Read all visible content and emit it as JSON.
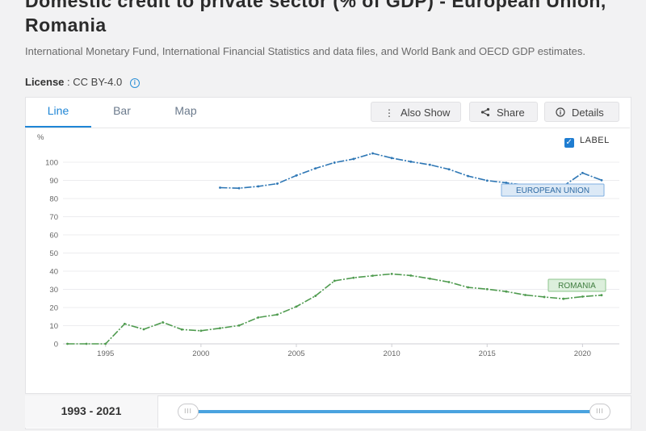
{
  "header": {
    "title": "Domestic credit to private sector (% of GDP) - European Union, Romania",
    "source": "International Monetary Fund, International Financial Statistics and data files, and World Bank and OECD GDP estimates.",
    "license_label": "License",
    "license_value": ": CC BY-4.0"
  },
  "tabs": [
    {
      "label": "Line"
    },
    {
      "label": "Bar"
    },
    {
      "label": "Map"
    }
  ],
  "actions": {
    "also_show": "Also Show",
    "share": "Share",
    "details": "Details"
  },
  "label_toggle": {
    "text": "LABEL",
    "checked": true
  },
  "range": {
    "text": "1993 - 2021",
    "start": 1993,
    "end": 2021
  },
  "colors": {
    "eu": "#2e77b5",
    "romania": "#4f9b4f",
    "accent": "#1f86d6"
  },
  "chart_data": {
    "type": "line",
    "title": "Domestic credit to private sector (% of GDP) - European Union, Romania",
    "ylabel": "%",
    "xlabel": "",
    "xlim": [
      1993,
      2021
    ],
    "ylim": [
      0,
      100
    ],
    "yticks": [
      0,
      10,
      20,
      30,
      40,
      50,
      60,
      70,
      80,
      90,
      100
    ],
    "xticks": [
      1995,
      2000,
      2005,
      2010,
      2015,
      2020
    ],
    "grid": true,
    "series": [
      {
        "name": "EUROPEAN UNION",
        "x": [
          2001,
          2002,
          2003,
          2004,
          2005,
          2006,
          2007,
          2008,
          2009,
          2010,
          2011,
          2012,
          2013,
          2014,
          2015,
          2016,
          2017,
          2018,
          2019,
          2020,
          2021
        ],
        "values": [
          86,
          85.7,
          86.7,
          88.2,
          92.7,
          96.6,
          99.8,
          101.8,
          104.9,
          102.3,
          100.3,
          98.6,
          96.1,
          92.4,
          89.9,
          88.7,
          87.4,
          86.5,
          86.9,
          94.1,
          90.1
        ]
      },
      {
        "name": "ROMANIA",
        "x": [
          1993,
          1994,
          1995,
          1996,
          1997,
          1998,
          1999,
          2000,
          2001,
          2002,
          2003,
          2004,
          2005,
          2006,
          2007,
          2008,
          2009,
          2010,
          2011,
          2012,
          2013,
          2014,
          2015,
          2016,
          2017,
          2018,
          2019,
          2020,
          2021
        ],
        "values": [
          0,
          0,
          0,
          11,
          8,
          11.8,
          7.9,
          7.2,
          8.6,
          10.1,
          14.5,
          16.1,
          20.5,
          26.4,
          34.7,
          36.4,
          37.5,
          38.5,
          37.6,
          35.9,
          34,
          31.1,
          30.1,
          28.8,
          26.9,
          25.8,
          24.8,
          26,
          26.8
        ]
      }
    ]
  }
}
